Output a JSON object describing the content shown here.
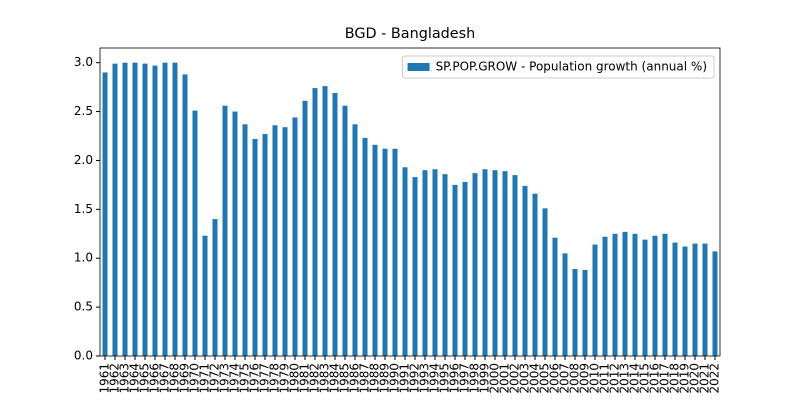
{
  "chart_data": {
    "type": "bar",
    "title": "BGD - Bangladesh",
    "categories": [
      "1961",
      "1962",
      "1963",
      "1964",
      "1965",
      "1966",
      "1967",
      "1968",
      "1969",
      "1970",
      "1971",
      "1972",
      "1973",
      "1974",
      "1975",
      "1976",
      "1977",
      "1978",
      "1979",
      "1980",
      "1981",
      "1982",
      "1983",
      "1984",
      "1985",
      "1986",
      "1987",
      "1988",
      "1989",
      "1990",
      "1991",
      "1992",
      "1993",
      "1994",
      "1995",
      "1996",
      "1997",
      "1998",
      "1999",
      "2000",
      "2001",
      "2002",
      "2003",
      "2004",
      "2005",
      "2006",
      "2007",
      "2008",
      "2009",
      "2010",
      "2011",
      "2012",
      "2013",
      "2014",
      "2015",
      "2016",
      "2017",
      "2018",
      "2019",
      "2020",
      "2021",
      "2022"
    ],
    "series": [
      {
        "name": "SP.POP.GROW - Population growth (annual %)",
        "color": "#1f77b4",
        "values": [
          2.9,
          2.99,
          3.0,
          3.0,
          2.99,
          2.97,
          3.0,
          3.0,
          2.88,
          2.51,
          1.23,
          1.4,
          2.56,
          2.5,
          2.37,
          2.22,
          2.27,
          2.36,
          2.34,
          2.44,
          2.61,
          2.74,
          2.76,
          2.69,
          2.56,
          2.37,
          2.23,
          2.16,
          2.12,
          2.12,
          1.93,
          1.83,
          1.9,
          1.91,
          1.86,
          1.75,
          1.78,
          1.87,
          1.91,
          1.9,
          1.89,
          1.85,
          1.74,
          1.66,
          1.51,
          1.21,
          1.05,
          0.89,
          0.88,
          1.14,
          1.22,
          1.25,
          1.27,
          1.25,
          1.19,
          1.23,
          1.25,
          1.16,
          1.12,
          1.15,
          1.15,
          1.07
        ]
      }
    ],
    "ylim": [
      0,
      3.15
    ],
    "yticks": [
      {
        "value": 0,
        "label": "0.0"
      },
      {
        "value": 0.5,
        "label": "0.5"
      },
      {
        "value": 1,
        "label": "1.0"
      },
      {
        "value": 1.5,
        "label": "1.5"
      },
      {
        "value": 2,
        "label": "2.0"
      },
      {
        "value": 2.5,
        "label": "2.5"
      },
      {
        "value": 3,
        "label": "3.0"
      }
    ],
    "legend": "upper right",
    "grid": false
  }
}
